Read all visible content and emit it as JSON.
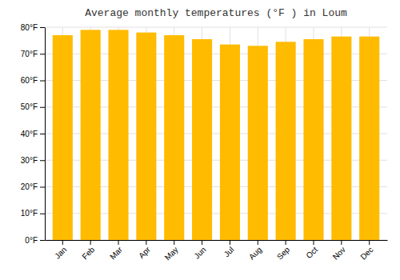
{
  "chart_data": {
    "type": "bar",
    "title": "Average monthly temperatures (°F ) in Loum",
    "categories": [
      "Jan",
      "Feb",
      "Mar",
      "Apr",
      "May",
      "Jun",
      "Jul",
      "Aug",
      "Sep",
      "Oct",
      "Nov",
      "Dec"
    ],
    "values": [
      77,
      79,
      79,
      78,
      77,
      75.5,
      73.5,
      73,
      74.5,
      75.5,
      76.5,
      76.5
    ],
    "color": "#FFBB00",
    "ylim": [
      0,
      80
    ],
    "yticks": [
      {
        "value": 0,
        "label": "0°F"
      },
      {
        "value": 10,
        "label": "10°F"
      },
      {
        "value": 20,
        "label": "20°F"
      },
      {
        "value": 30,
        "label": "30°F"
      },
      {
        "value": 40,
        "label": "40°F"
      },
      {
        "value": 50,
        "label": "50°F"
      },
      {
        "value": 60,
        "label": "60°F"
      },
      {
        "value": 70,
        "label": "70°F"
      },
      {
        "value": 80,
        "label": "80°F"
      }
    ],
    "grid": true
  }
}
